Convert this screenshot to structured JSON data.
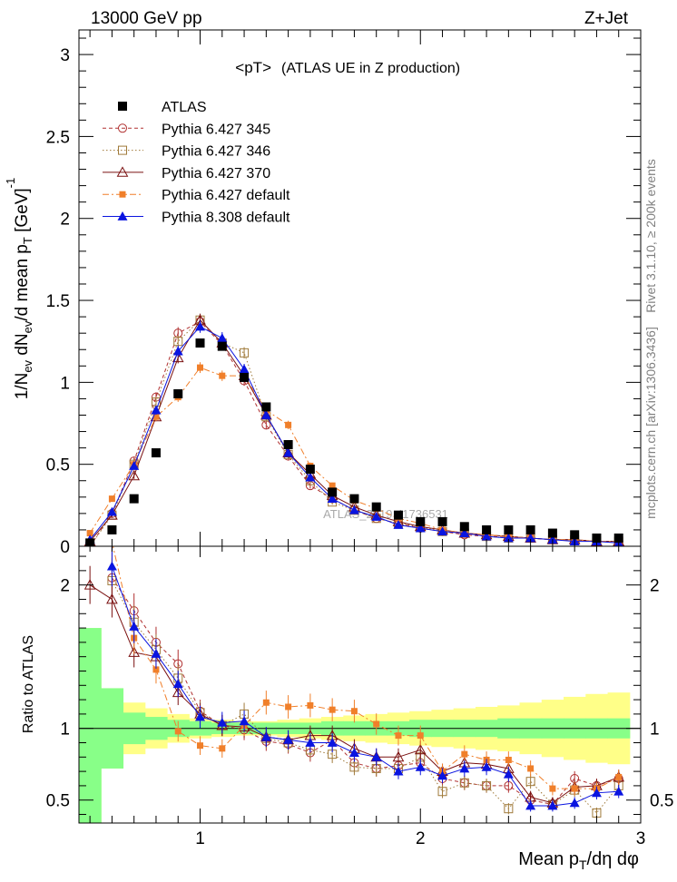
{
  "header": {
    "left_title": "13000 GeV pp",
    "right_title": "Z+Jet",
    "plot_title": "<pT>",
    "plot_subtitle": "(ATLAS UE in Z production)",
    "side_label_top": "Rivet 3.1.10, ≥ 200k events",
    "side_label_bottom": "mcplots.cern.ch [arXiv:1306.3436]",
    "watermark": "ATLAS_2019_I1736531"
  },
  "chart_data": [
    {
      "type": "scatter",
      "panel": "main",
      "ylabel_parts": [
        "1/N",
        "ev",
        " dN",
        "ev",
        "/d mean p",
        "T",
        " [GeV]",
        "-1"
      ],
      "ylim": [
        0,
        3.15
      ],
      "xlim": [
        0.45,
        3.0
      ],
      "yticks": [
        0,
        0.5,
        1,
        1.5,
        2,
        2.5,
        3
      ],
      "ytick_labels": [
        "0",
        "0.5",
        "1",
        "1.5",
        "2",
        "2.5",
        "3"
      ],
      "legend_position": "top-left",
      "x": [
        0.5,
        0.6,
        0.7,
        0.8,
        0.9,
        1.0,
        1.1,
        1.2,
        1.3,
        1.4,
        1.5,
        1.6,
        1.7,
        1.8,
        1.9,
        2.0,
        2.1,
        2.2,
        2.3,
        2.4,
        2.5,
        2.6,
        2.7,
        2.8,
        2.9
      ],
      "series": [
        {
          "name": "ATLAS",
          "color": "#000000",
          "marker": "square-filled",
          "line": "none",
          "values": [
            0.02,
            0.1,
            0.29,
            0.57,
            0.93,
            1.24,
            1.22,
            1.03,
            0.85,
            0.62,
            0.47,
            0.33,
            0.29,
            0.24,
            0.19,
            0.15,
            0.15,
            0.12,
            0.1,
            0.1,
            0.1,
            0.08,
            0.07,
            0.05,
            0.05
          ]
        },
        {
          "name": "Pythia 6.427 345",
          "color": "#b03030",
          "marker": "circle-open",
          "line": "dashed",
          "values": [
            0.0,
            0.2,
            0.52,
            0.91,
            1.3,
            1.37,
            1.23,
            1.01,
            0.74,
            0.55,
            0.37,
            0.29,
            0.22,
            0.17,
            0.14,
            0.11,
            0.09,
            0.07,
            0.06,
            0.06,
            0.05,
            0.04,
            0.04,
            0.03,
            0.03
          ]
        },
        {
          "name": "Pythia 6.427 346",
          "color": "#a07a3a",
          "marker": "square-open",
          "line": "dotted",
          "values": [
            0.0,
            0.19,
            0.5,
            0.88,
            1.25,
            1.38,
            1.24,
            1.18,
            0.79,
            0.56,
            0.4,
            0.27,
            0.22,
            0.17,
            0.14,
            0.12,
            0.09,
            0.08,
            0.06,
            0.05,
            0.05,
            0.04,
            0.04,
            0.03,
            0.03
          ]
        },
        {
          "name": "Pythia 6.427 370",
          "color": "#7a1010",
          "marker": "triangle-open",
          "line": "solid",
          "values": [
            0.03,
            0.19,
            0.43,
            0.79,
            1.15,
            1.38,
            1.24,
            1.04,
            0.8,
            0.57,
            0.44,
            0.31,
            0.24,
            0.19,
            0.15,
            0.12,
            0.1,
            0.08,
            0.07,
            0.06,
            0.05,
            0.04,
            0.04,
            0.03,
            0.03
          ]
        },
        {
          "name": "Pythia 6.427 default",
          "color": "#f07f2a",
          "marker": "square-filled-small",
          "line": "dashdot",
          "values": [
            0.08,
            0.29,
            0.5,
            0.79,
            0.91,
            1.09,
            1.04,
            1.04,
            0.83,
            0.74,
            0.49,
            0.37,
            0.28,
            0.23,
            0.17,
            0.14,
            0.1,
            0.08,
            0.07,
            0.06,
            0.05,
            0.04,
            0.04,
            0.03,
            0.03
          ]
        },
        {
          "name": "Pythia 8.308 default",
          "color": "#0a14e0",
          "marker": "triangle-filled",
          "line": "solid",
          "values": [
            0.04,
            0.21,
            0.49,
            0.83,
            1.19,
            1.34,
            1.27,
            1.08,
            0.8,
            0.57,
            0.42,
            0.29,
            0.22,
            0.18,
            0.13,
            0.11,
            0.09,
            0.08,
            0.06,
            0.05,
            0.05,
            0.04,
            0.03,
            0.03,
            0.02
          ]
        }
      ]
    },
    {
      "type": "line",
      "panel": "ratio",
      "ylabel": "Ratio to ATLAS",
      "xlabel_parts": [
        "Mean p",
        "T",
        "/dη dφ"
      ],
      "ylim": [
        0.34,
        2.27
      ],
      "xlim": [
        0.45,
        3.0
      ],
      "yticks": [
        0.5,
        1,
        2
      ],
      "ytick_labels": [
        "0.5",
        "1",
        "2"
      ],
      "xticks": [
        1,
        2,
        3
      ],
      "xtick_labels": [
        "1",
        "2",
        "3"
      ],
      "x": [
        0.5,
        0.6,
        0.7,
        0.8,
        0.9,
        1.0,
        1.1,
        1.2,
        1.3,
        1.4,
        1.5,
        1.6,
        1.7,
        1.8,
        1.9,
        2.0,
        2.1,
        2.2,
        2.3,
        2.4,
        2.5,
        2.6,
        2.7,
        2.8,
        2.9
      ],
      "band_outer": {
        "color": "#ffff88",
        "lower": [
          0.3,
          0.72,
          0.82,
          0.86,
          0.9,
          0.93,
          0.94,
          0.95,
          0.95,
          0.94,
          0.93,
          0.92,
          0.91,
          0.9,
          0.89,
          0.88,
          0.87,
          0.86,
          0.85,
          0.84,
          0.82,
          0.8,
          0.78,
          0.76,
          0.75
        ],
        "upper": [
          1.7,
          1.28,
          1.18,
          1.14,
          1.1,
          1.07,
          1.06,
          1.05,
          1.05,
          1.06,
          1.07,
          1.08,
          1.09,
          1.1,
          1.11,
          1.12,
          1.13,
          1.14,
          1.15,
          1.16,
          1.18,
          1.2,
          1.22,
          1.24,
          1.25
        ]
      },
      "band_inner": {
        "color": "#88ff88",
        "lower": [
          0.3,
          0.72,
          0.89,
          0.92,
          0.94,
          0.95,
          0.96,
          0.96,
          0.96,
          0.96,
          0.96,
          0.95,
          0.95,
          0.95,
          0.95,
          0.94,
          0.94,
          0.94,
          0.94,
          0.93,
          0.93,
          0.93,
          0.93,
          0.93,
          0.93
        ],
        "upper": [
          1.7,
          1.28,
          1.11,
          1.08,
          1.06,
          1.05,
          1.04,
          1.04,
          1.04,
          1.04,
          1.04,
          1.05,
          1.05,
          1.05,
          1.05,
          1.06,
          1.06,
          1.06,
          1.06,
          1.07,
          1.07,
          1.07,
          1.07,
          1.07,
          1.07
        ]
      },
      "reference_line": 1,
      "series": [
        {
          "name": "Pythia 6.427 345",
          "color": "#b03030",
          "marker": "circle-open",
          "line": "dashed",
          "values": [
            null,
            2.05,
            1.82,
            1.6,
            1.45,
            1.12,
            1.02,
            0.99,
            0.91,
            0.89,
            0.83,
            0.92,
            0.76,
            0.72,
            0.74,
            0.76,
            0.65,
            0.62,
            0.6,
            0.6,
            0.5,
            0.47,
            0.65,
            0.6,
            0.65
          ]
        },
        {
          "name": "Pythia 6.427 346",
          "color": "#a07a3a",
          "marker": "square-open",
          "line": "dotted",
          "values": [
            null,
            2.03,
            1.74,
            1.55,
            1.35,
            1.11,
            1.02,
            1.1,
            0.93,
            0.9,
            0.85,
            0.82,
            0.73,
            0.72,
            0.72,
            0.8,
            0.56,
            0.62,
            0.6,
            0.44,
            0.63,
            0.47,
            0.57,
            0.41,
            0.6
          ]
        },
        {
          "name": "Pythia 6.427 370",
          "color": "#7a1010",
          "marker": "triangle-open",
          "line": "solid",
          "values": [
            2.0,
            1.9,
            1.53,
            1.5,
            1.25,
            1.1,
            1.02,
            1.01,
            0.94,
            0.92,
            0.95,
            0.95,
            0.86,
            0.8,
            0.8,
            0.85,
            0.7,
            0.76,
            0.75,
            0.72,
            0.52,
            0.48,
            0.59,
            0.6,
            0.66
          ]
        },
        {
          "name": "Pythia 6.427 default",
          "color": "#f07f2a",
          "marker": "square-filled-small",
          "line": "dashdot",
          "values": [
            null,
            2.3,
            1.63,
            1.41,
            0.98,
            0.88,
            0.86,
            1.02,
            1.18,
            1.15,
            1.16,
            1.13,
            1.12,
            1.03,
            0.95,
            0.95,
            0.7,
            0.82,
            0.78,
            0.78,
            0.72,
            0.58,
            0.58,
            0.58,
            0.66
          ]
        },
        {
          "name": "Pythia 8.308 default",
          "color": "#0a14e0",
          "marker": "triangle-filled",
          "line": "solid",
          "values": [
            null,
            2.13,
            1.71,
            1.52,
            1.31,
            1.08,
            1.04,
            1.05,
            0.94,
            0.92,
            0.9,
            0.9,
            0.83,
            0.8,
            0.7,
            0.73,
            0.67,
            0.72,
            0.73,
            0.68,
            0.46,
            0.46,
            0.48,
            0.55,
            0.56
          ]
        }
      ]
    }
  ]
}
